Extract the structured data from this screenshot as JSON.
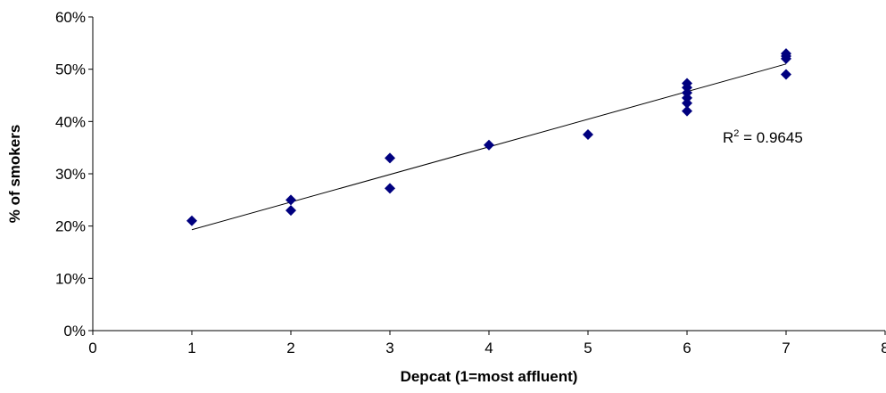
{
  "chart_data": {
    "type": "scatter",
    "title": "",
    "xlabel": "Depcat (1=most affluent)",
    "ylabel": "% of smokers",
    "xlim": [
      0,
      8
    ],
    "ylim": [
      0,
      60
    ],
    "x_ticks": [
      0,
      1,
      2,
      3,
      4,
      5,
      6,
      7,
      8
    ],
    "y_ticks": [
      0,
      10,
      20,
      30,
      40,
      50,
      60
    ],
    "y_tick_suffix": "%",
    "grid": false,
    "legend": "none",
    "marker_color": "#00007f",
    "series": [
      {
        "name": "",
        "points": [
          [
            1,
            21.0
          ],
          [
            2,
            25.0
          ],
          [
            2,
            23.0
          ],
          [
            3,
            33.0
          ],
          [
            3,
            27.2
          ],
          [
            4,
            35.5
          ],
          [
            5,
            37.5
          ],
          [
            6,
            47.3
          ],
          [
            6,
            46.5
          ],
          [
            6,
            45.5
          ],
          [
            6,
            44.5
          ],
          [
            6,
            43.5
          ],
          [
            6,
            42.0
          ],
          [
            7,
            53.0
          ],
          [
            7,
            52.5
          ],
          [
            7,
            52.0
          ],
          [
            7,
            49.0
          ]
        ]
      }
    ],
    "trendline": {
      "type": "linear",
      "x": [
        1,
        7
      ],
      "y": [
        19.3,
        51.0
      ]
    },
    "annotation": {
      "label": "R",
      "superscript": "2",
      "text": " = 0.9645"
    }
  }
}
